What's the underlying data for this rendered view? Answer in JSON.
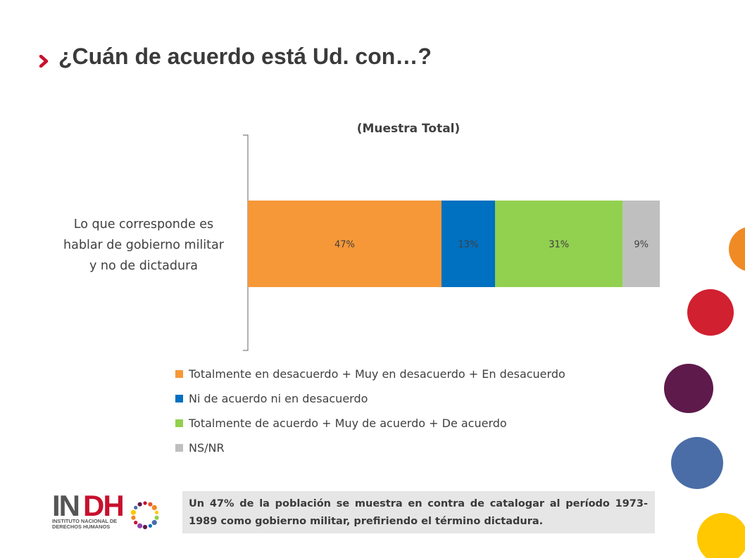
{
  "header": {
    "title": "¿Cuán de acuerdo está Ud. con…?"
  },
  "chart_data": {
    "type": "bar",
    "orientation": "horizontal",
    "stacked": true,
    "title": "(Muestra Total)",
    "categories": [
      "Lo que corresponde es hablar de gobierno militar y no de dictadura"
    ],
    "category_label_lines": [
      "Lo que corresponde es",
      "hablar de gobierno militar",
      "y no de dictadura"
    ],
    "series": [
      {
        "name": "Totalmente en desacuerdo + Muy en desacuerdo + En desacuerdo",
        "values": [
          47
        ],
        "label": "47%",
        "color": "#f79838"
      },
      {
        "name": "Ni de acuerdo ni en desacuerdo",
        "values": [
          13
        ],
        "label": "13%",
        "color": "#0070c0"
      },
      {
        "name": "Totalmente de acuerdo + Muy de acuerdo + De acuerdo",
        "values": [
          31
        ],
        "label": "31%",
        "color": "#92d050"
      },
      {
        "name": "NS/NR",
        "values": [
          9
        ],
        "label": "9%",
        "color": "#bfbfbf"
      }
    ],
    "xlim": [
      0,
      100
    ],
    "grid": false,
    "legend_position": "bottom"
  },
  "logo": {
    "text_main": "INDH",
    "text_line1": "INSTITUTO NACIONAL DE",
    "text_line2": "DERECHOS HUMANOS"
  },
  "note": {
    "text": "Un 47% de la población se muestra en contra de catalogar al período 1973-1989 como gobierno militar, prefiriendo el término dictadura."
  },
  "colors": {
    "accent_red": "#c8102e",
    "circle_orange": "#f08a24",
    "circle_red": "#d1202f",
    "circle_purple": "#5e1a4b",
    "circle_blue": "#4a6da7",
    "circle_yellow": "#ffc800"
  }
}
